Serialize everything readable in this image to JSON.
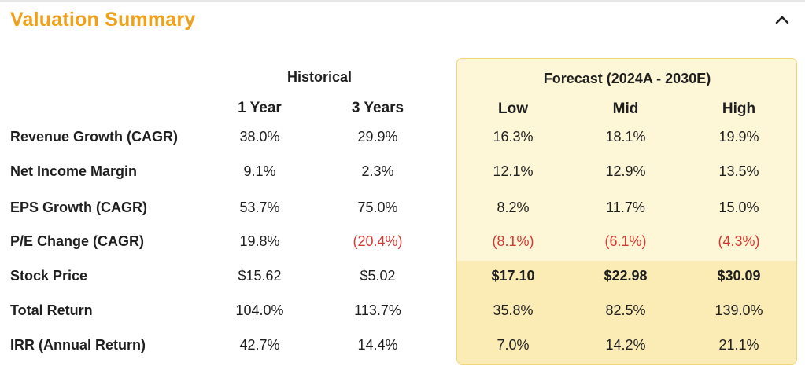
{
  "title": "Valuation Summary",
  "collapse_icon": "chevron-up-icon",
  "groups": {
    "historical": "Historical",
    "forecast": "Forecast (2024A - 2030E)"
  },
  "columns": [
    "1 Year",
    "3 Years",
    "Low",
    "Mid",
    "High"
  ],
  "rows": [
    {
      "label": "Revenue Growth (CAGR)",
      "values": [
        "38.0%",
        "29.9%",
        "16.3%",
        "18.1%",
        "19.9%"
      ]
    },
    {
      "label": "Net Income Margin",
      "values": [
        "9.1%",
        "2.3%",
        "12.1%",
        "12.9%",
        "13.5%"
      ]
    },
    {
      "label": "EPS Growth (CAGR)",
      "values": [
        "53.7%",
        "75.0%",
        "8.2%",
        "11.7%",
        "15.0%"
      ]
    },
    {
      "label": "P/E Change (CAGR)",
      "values": [
        "19.8%",
        "(20.4%)",
        "(8.1%)",
        "(6.1%)",
        "(4.3%)"
      ]
    },
    {
      "label": "Stock Price",
      "values": [
        "$15.62",
        "$5.02",
        "$17.10",
        "$22.98",
        "$30.09"
      ]
    },
    {
      "label": "Total Return",
      "values": [
        "104.0%",
        "113.7%",
        "35.8%",
        "82.5%",
        "139.0%"
      ]
    },
    {
      "label": "IRR (Annual Return)",
      "values": [
        "42.7%",
        "14.4%",
        "7.0%",
        "14.2%",
        "21.1%"
      ]
    }
  ],
  "colors": {
    "title": "#f0a117",
    "negative": "#d63a35",
    "forecast_bg": "#fdf6d7",
    "forecast_bg_lower": "#fbecb6",
    "forecast_border": "#f0d67a"
  }
}
